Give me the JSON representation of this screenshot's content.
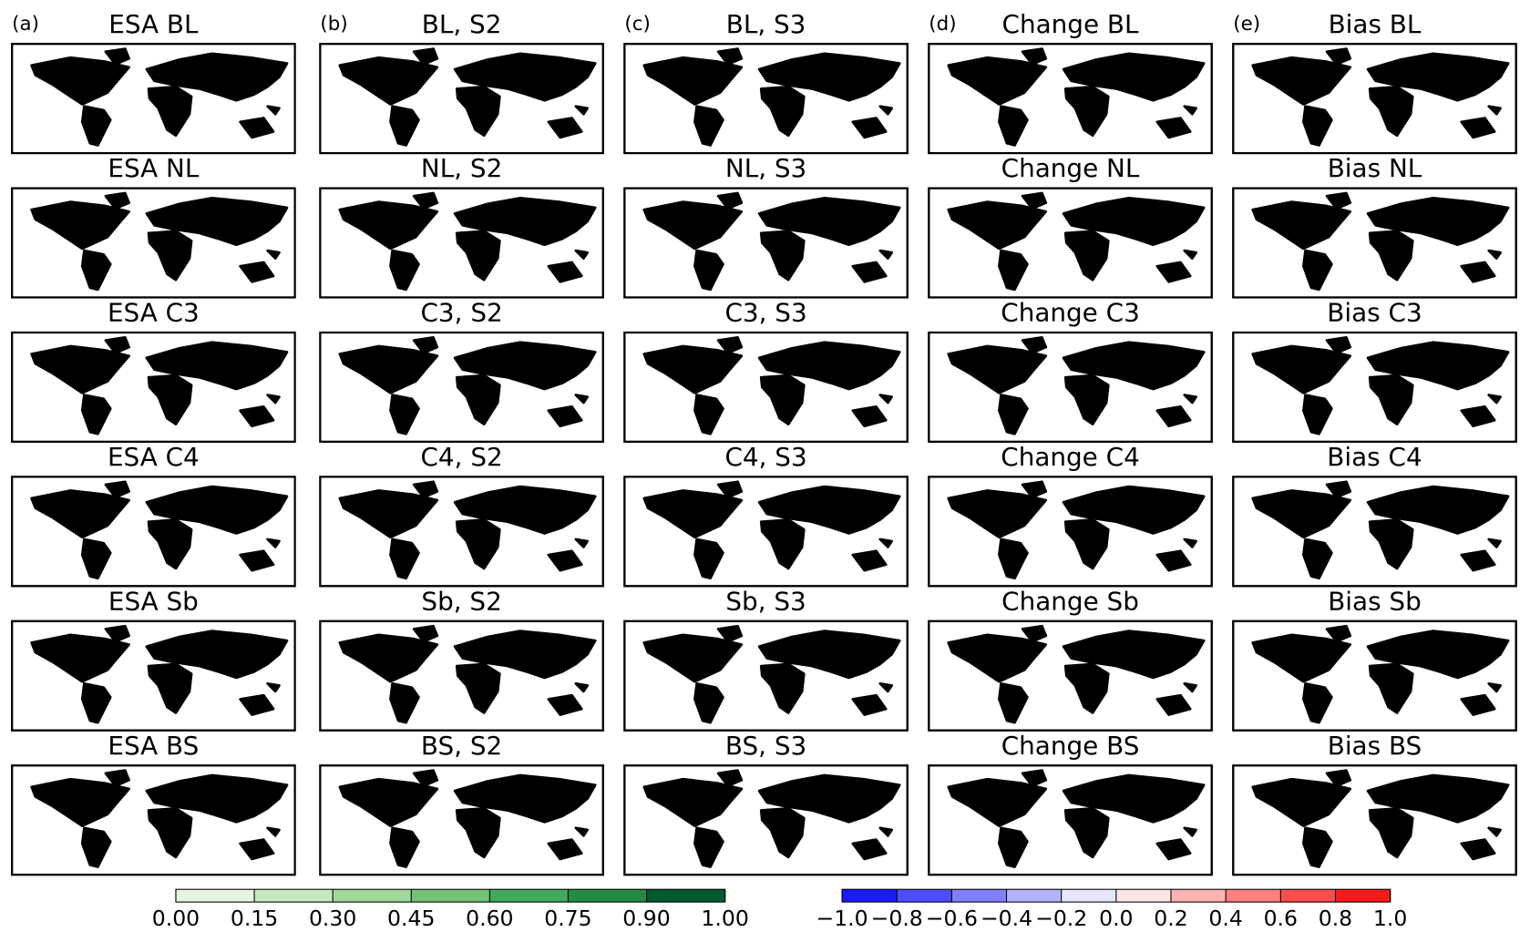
{
  "columns": [
    {
      "label": "(a)",
      "kind": "green",
      "titles": [
        "ESA BL",
        "ESA NL",
        "ESA C3",
        "ESA C4",
        "ESA Sb",
        "ESA BS"
      ]
    },
    {
      "label": "(b)",
      "kind": "green",
      "titles": [
        "BL, S2",
        "NL, S2",
        "C3, S2",
        "C4, S2",
        "Sb, S2",
        "BS, S2"
      ]
    },
    {
      "label": "(c)",
      "kind": "green",
      "titles": [
        "BL, S3",
        "NL, S3",
        "C3, S3",
        "C4, S3",
        "Sb, S3",
        "BS, S3"
      ]
    },
    {
      "label": "(d)",
      "kind": "diverging",
      "titles": [
        "Change BL",
        "Change NL",
        "Change C3",
        "Change C4",
        "Change Sb",
        "Change BS"
      ]
    },
    {
      "label": "(e)",
      "kind": "diverging",
      "titles": [
        "Bias BL",
        "Bias NL",
        "Bias C3",
        "Bias C4",
        "Bias Sb",
        "Bias BS"
      ]
    }
  ],
  "colorbars": [
    {
      "ticks": [
        {
          "value": 0,
          "label": "0.00"
        },
        0.15,
        {
          "value": 0.3,
          "label": "0.30"
        },
        0.45,
        {
          "value": 0.6,
          "label": "0.60"
        },
        0.75,
        {
          "value": 0.9,
          "label": "0.90"
        },
        {
          "value": 1,
          "label": "1.00"
        }
      ],
      "colors": [
        "#e5f5e0",
        "#c7e9c0",
        "#a1d99b",
        "#74c476",
        "#41ab5d",
        "#238b45",
        "#005a32"
      ]
    },
    {
      "ticks": [
        {
          "value": -1,
          "label": "−1.0"
        },
        {
          "value": -0.8,
          "label": "−0.8"
        },
        {
          "value": -0.6,
          "label": "−0.6"
        },
        {
          "value": -0.4,
          "label": "−0.4"
        },
        {
          "value": -0.2,
          "label": "−0.2"
        },
        {
          "value": 0,
          "label": "0.0"
        },
        0.2,
        0.4,
        0.6,
        0.8,
        {
          "value": 1,
          "label": "1.0"
        }
      ],
      "colors": [
        "#1a1aff",
        "#4d4dff",
        "#8080ff",
        "#b3b3ff",
        "#e6e6ff",
        "#ffe6e6",
        "#ffb3b3",
        "#ff8080",
        "#ff4d4d",
        "#ff1a1a"
      ]
    }
  ]
}
